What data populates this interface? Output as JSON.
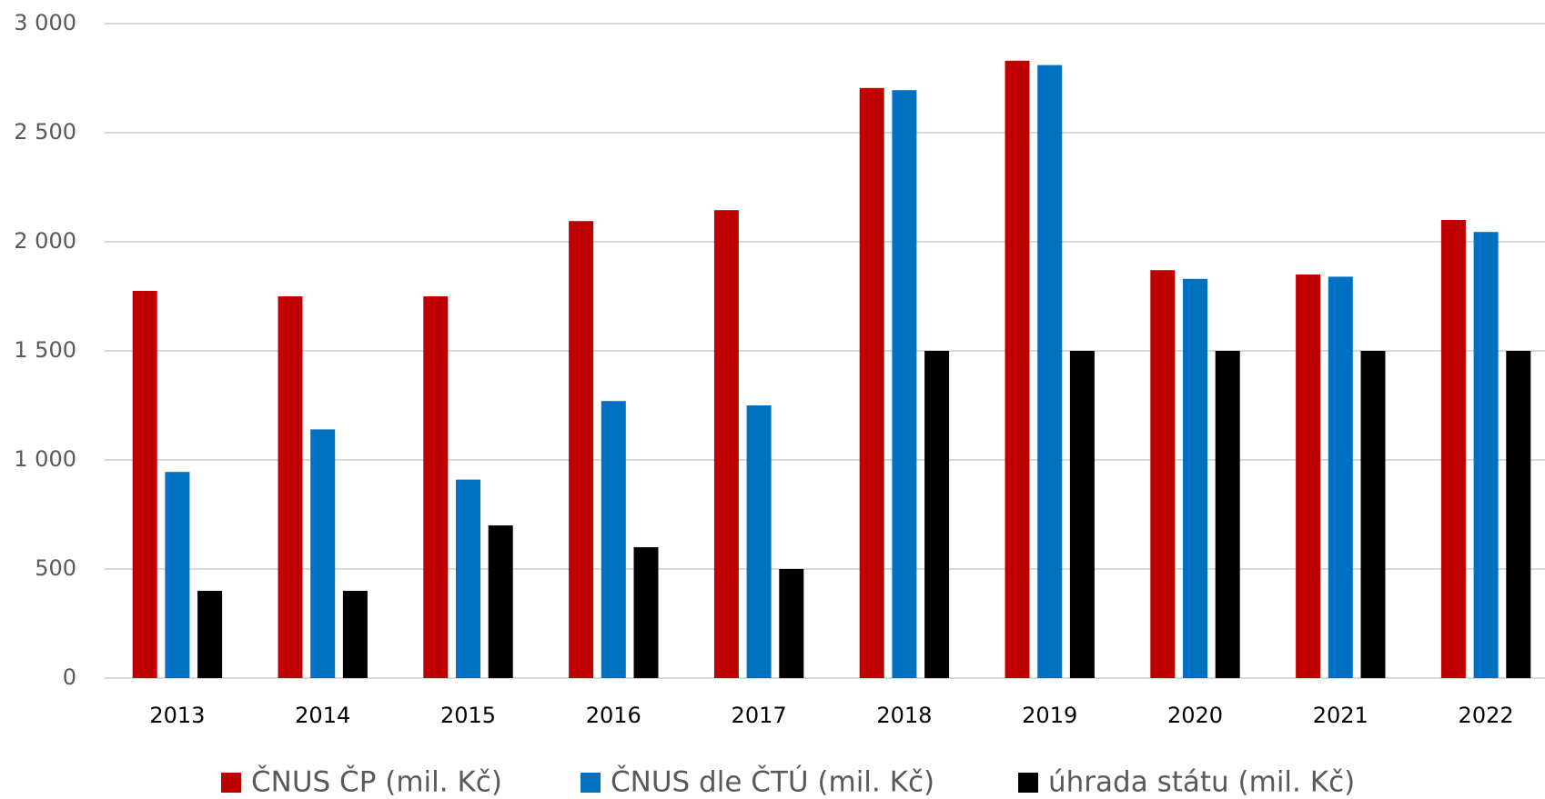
{
  "chart_data": {
    "type": "bar",
    "categories": [
      "2013",
      "2014",
      "2015",
      "2016",
      "2017",
      "2018",
      "2019",
      "2020",
      "2021",
      "2022"
    ],
    "series": [
      {
        "name": "ČNUS ČP (mil. Kč)",
        "color": "#c00000",
        "values": [
          1775,
          1750,
          1750,
          2095,
          2145,
          2705,
          2830,
          1870,
          1850,
          2100
        ]
      },
      {
        "name": "ČNUS dle ČTÚ (mil. Kč)",
        "color": "#0070c0",
        "values": [
          945,
          1140,
          910,
          1270,
          1250,
          2695,
          2810,
          1830,
          1840,
          2045
        ]
      },
      {
        "name": "úhrada státu (mil. Kč)",
        "color": "#000000",
        "values": [
          400,
          400,
          700,
          600,
          500,
          1500,
          1500,
          1500,
          1500,
          1500
        ]
      }
    ],
    "ylim": [
      0,
      3000
    ],
    "yticks": [
      0,
      500,
      {
        "value": 1000,
        "label": "1 000"
      },
      {
        "value": 1500,
        "label": "1 500"
      },
      {
        "value": 2000,
        "label": "2 000"
      },
      {
        "value": 2500,
        "label": "2 500"
      },
      {
        "value": 3000,
        "label": "3 000"
      }
    ],
    "grid": true,
    "legend": "bottom"
  }
}
